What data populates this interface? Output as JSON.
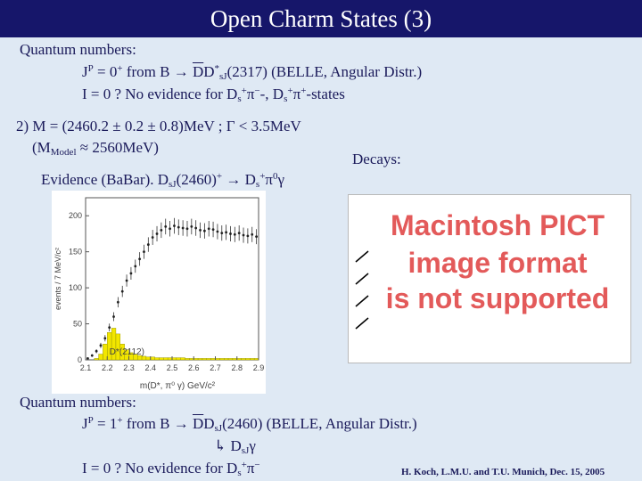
{
  "title": "Open Charm States (3)",
  "section1": {
    "heading": "Quantum numbers:",
    "jp_prefix": "J",
    "jp_p": "P",
    "jp_rest": " = 0",
    "jp_plus": "+",
    "jp_from": " from B ",
    "arrow": "→",
    "dbar": "D",
    "d2": "D",
    "star": "*",
    "sub_sJ": "sJ",
    "jp_tail": "(2317) (BELLE, Angular Distr.)",
    "iso": "I = 0 ?   No evidence for D",
    "iso_mid1": "π",
    "iso_minus": "−",
    "iso_mid2": "-, D",
    "iso_mid3": "π",
    "iso_tail": "-states",
    "s": "s",
    "plus": "+"
  },
  "mass_line": {
    "text": "2) M = (2460.2 ± 0.2 ± 0.8)MeV ; Γ < 3.5MeV",
    "model_prefix": "(M",
    "model_sub": "Model",
    "model_tail": " ≈ 2560MeV)"
  },
  "decays_label": "Decays:",
  "evidence": {
    "prefix": "Evidence (BaBar). D",
    "sub": "sJ",
    "mid": "(2460)",
    "plus": "+",
    "arrow": " → D",
    "s": "s",
    "splus": "+",
    "tail": "π",
    "zero": "0",
    "gamma": "γ"
  },
  "pict": {
    "line1": "Macintosh PICT",
    "line2": "image format",
    "line3": "is not supported"
  },
  "section2": {
    "heading": "Quantum numbers:",
    "jp_prefix": "J",
    "jp_p": "P",
    "jp_rest": " = 1",
    "jp_plus": "+",
    "jp_from": " from B ",
    "arrow": "→",
    "dbar": "D",
    "d2": "D",
    "sub_sJ": "sJ",
    "jp_tail": "(2460)   (BELLE, Angular Distr.)",
    "decay_symbol": "↳",
    "decay_d": " D",
    "decay_sub": "sJ",
    "decay_gamma": "γ",
    "iso": "I = 0 ?   No evidence for D",
    "s": "s",
    "plus": "+",
    "pi": "π",
    "minus": "−"
  },
  "footer": "H. Koch, L.M.U. and T.U.  Munich, Dec. 15, 2005",
  "colors": {
    "title_bg": "#16166a",
    "body_bg": "#dfe9f4",
    "text": "#1a1a5a",
    "pict_text": "#e35a5a",
    "histogram_fill": "#f2e600"
  },
  "chart_data": {
    "type": "bar",
    "xlabel": "m(D*, π⁰ γ) GeV/c²",
    "ylabel": "events / 7 MeV/c²",
    "x_ticks": [
      "2.1",
      "2.2",
      "2.3",
      "2.4",
      "2.5",
      "2.6",
      "2.7",
      "2.8",
      "2.9"
    ],
    "y_ticks": [
      "0",
      "50",
      "100",
      "150",
      "200"
    ],
    "annotation": "D*(2112)",
    "xlim": [
      2.1,
      2.9
    ],
    "ylim": [
      0,
      225
    ],
    "x": [
      2.11,
      2.13,
      2.15,
      2.17,
      2.19,
      2.21,
      2.23,
      2.25,
      2.27,
      2.29,
      2.31,
      2.33,
      2.35,
      2.37,
      2.39,
      2.41,
      2.43,
      2.45,
      2.47,
      2.49,
      2.51,
      2.53,
      2.55,
      2.57,
      2.59,
      2.61,
      2.63,
      2.65,
      2.67,
      2.69,
      2.71,
      2.73,
      2.75,
      2.77,
      2.79,
      2.81,
      2.83,
      2.85,
      2.87,
      2.89
    ],
    "series": [
      {
        "values": [
          2,
          6,
          12,
          20,
          30,
          45,
          60,
          80,
          95,
          110,
          120,
          130,
          140,
          150,
          160,
          170,
          175,
          180,
          185,
          182,
          186,
          184,
          183,
          182,
          185,
          183,
          180,
          179,
          182,
          181,
          178,
          176,
          177,
          175,
          174,
          176,
          173,
          172,
          174,
          171
        ]
      },
      {
        "values": [
          0,
          0,
          2,
          8,
          22,
          38,
          44,
          36,
          22,
          14,
          10,
          8,
          6,
          5,
          4,
          4,
          3,
          3,
          3,
          3,
          3,
          3,
          3,
          2,
          2,
          2,
          2,
          2,
          2,
          2,
          2,
          2,
          2,
          2,
          2,
          2,
          2,
          2,
          2,
          2
        ]
      }
    ]
  }
}
